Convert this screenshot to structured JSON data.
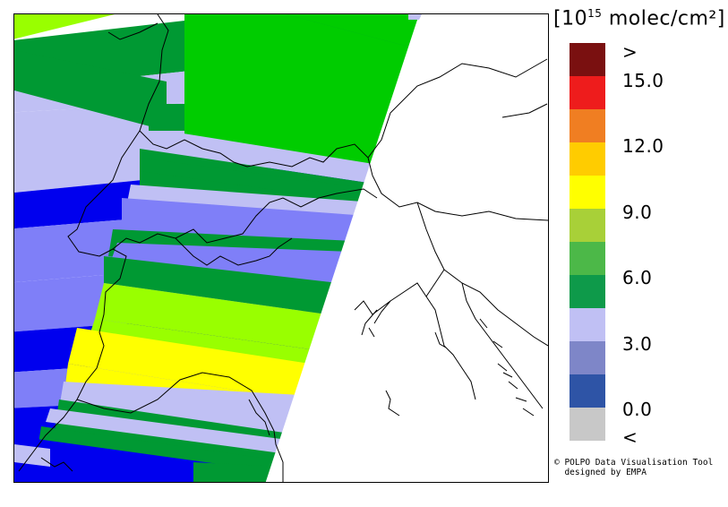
{
  "unit": {
    "open": "[10",
    "exponent": "15",
    "rest": " molec/cm²]"
  },
  "legend": {
    "colors": [
      "#7a1010",
      "#ee1c1c",
      "#f07e22",
      "#ffcc00",
      "#ffff00",
      "#a8d038",
      "#4cb848",
      "#0e9a4a",
      "#c0c0f4",
      "#7e86c8",
      "#2e54a6",
      "#c8c8c8"
    ],
    "ticks": [
      ">",
      "15.0",
      "12.0",
      "9.0",
      "6.0",
      "3.0",
      "0.0",
      "<"
    ]
  },
  "credits": {
    "line1": "POLPO Data Visualisation Tool",
    "line2": "designed by EMPA"
  },
  "map": {
    "band_colors": {
      "light_green": "#99ff00",
      "green": "#00cc00",
      "dark_green": "#009933",
      "lavender": "#c0c0f4",
      "periwinkle": "#7f7ff8",
      "blue": "#0000ee",
      "yellow": "#ffff00",
      "grey": "#c8c8c8"
    }
  }
}
